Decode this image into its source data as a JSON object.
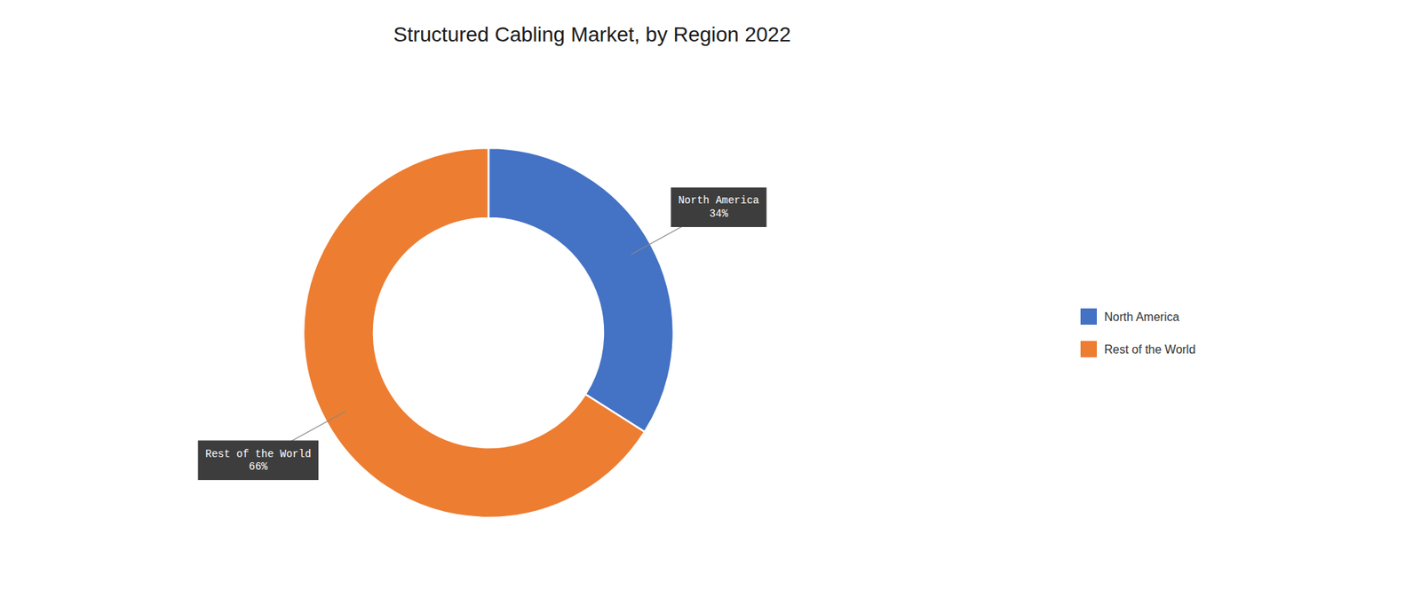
{
  "chart_data": {
    "type": "donut",
    "title": "Structured Cabling Market, by Region 2022",
    "categories": [
      "North America",
      "Rest of the World"
    ],
    "values": [
      34,
      66
    ],
    "colors": [
      "#4472C4",
      "#ED7D31"
    ],
    "data_labels": true,
    "value_labels": [
      "34%",
      "66%"
    ],
    "legend": "right"
  }
}
